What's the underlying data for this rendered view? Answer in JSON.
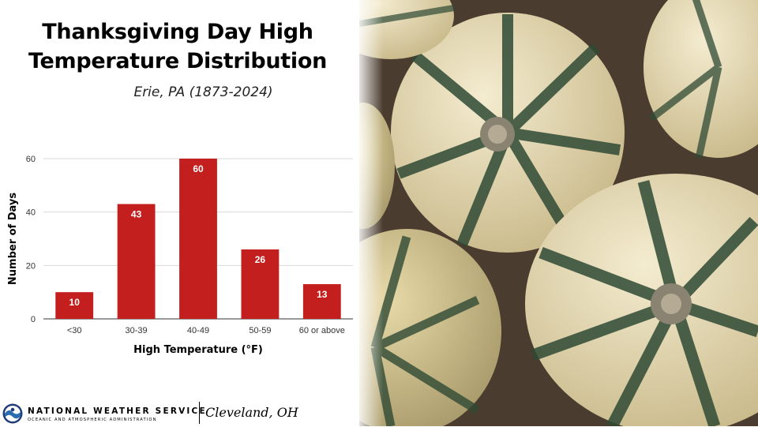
{
  "header": {
    "title_line1": "Thanksgiving Day High",
    "title_line2": "Temperature Distribution",
    "subtitle": "Erie, PA (1873-2024)"
  },
  "chart_data": {
    "type": "bar",
    "categories": [
      "<30",
      "30-39",
      "40-49",
      "50-59",
      "60 or above"
    ],
    "values": [
      10,
      43,
      60,
      26,
      13
    ],
    "data_labels": [
      "10",
      "43",
      "60",
      "26",
      "13"
    ],
    "xlabel": "High Temperature (°F)",
    "ylabel": "Number of Days",
    "ylim": [
      0,
      60
    ],
    "yticks": [
      0,
      20,
      40,
      60
    ],
    "grid": true,
    "legend": "none",
    "bar_color": "#c41f1f"
  },
  "footer": {
    "agency": "NATIONAL WEATHER SERVICE",
    "agency_sub": "OCEANIC AND ATMOSPHERIC ADMINISTRATION",
    "office": "Cleveland, OH"
  },
  "photo": {
    "subject": "decorative-squash-photo"
  },
  "colors": {
    "bar": "#c41f1f",
    "grid": "#d9d9d9",
    "text": "#000000"
  }
}
